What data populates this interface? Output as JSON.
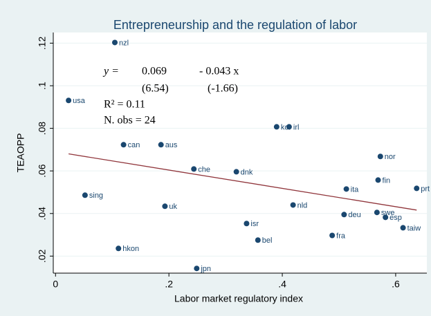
{
  "chart_data": {
    "type": "scatter",
    "title": "Entrepreneurship and the regulation of labor",
    "x_label": "Labor market regulatory index",
    "y_label": "TEAOPP",
    "color": "#1a476f",
    "fit_color": "#90353b",
    "grid": true,
    "xlim": [
      -0.004,
      0.655
    ],
    "ylim": [
      0.012,
      0.125
    ],
    "xticks": [
      0,
      {
        "value": 0.2,
        "label": ".2"
      },
      {
        "value": 0.4,
        "label": ".4"
      },
      {
        "value": 0.6,
        "label": ".6"
      }
    ],
    "yticks": [
      {
        "value": 0.02,
        "label": ".02"
      },
      {
        "value": 0.04,
        "label": ".04"
      },
      {
        "value": 0.06,
        "label": ".06"
      },
      {
        "value": 0.08,
        "label": ".08"
      },
      {
        "value": 0.1,
        "label": ".1"
      },
      {
        "value": 0.12,
        "label": ".12"
      }
    ],
    "point_labels": [
      "nzl",
      "usa",
      "can",
      "aus",
      "che",
      "dnk",
      "kor",
      "irl",
      "nor",
      "fin",
      "prt",
      "ita",
      "sing",
      "uk",
      "nld",
      "swe",
      "deu",
      "esp",
      "isr",
      "taiw",
      "bel",
      "fra",
      "hkon",
      "jpn"
    ],
    "x": [
      0.1046,
      0.023,
      0.12,
      0.186,
      0.244,
      0.319,
      0.39,
      0.412,
      0.573,
      0.569,
      0.637,
      0.513,
      0.052,
      0.193,
      0.419,
      0.567,
      0.509,
      0.582,
      0.337,
      0.613,
      0.357,
      0.488,
      0.111,
      0.249
    ],
    "values": [
      0.1203,
      0.0931,
      0.0723,
      0.0723,
      0.0609,
      0.0596,
      0.0807,
      0.0807,
      0.0668,
      0.0557,
      0.0518,
      0.0515,
      0.0486,
      0.0434,
      0.044,
      0.0405,
      0.0395,
      0.0382,
      0.0353,
      0.0333,
      0.0275,
      0.0297,
      0.0236,
      0.0142
    ],
    "fit": {
      "y_label": "y =",
      "intercept": 0.069,
      "slope": {
        "value": -0.043,
        "label": "- 0.043 x"
      },
      "t_intercept": {
        "value": 6.54,
        "label": "(6.54)"
      },
      "t_slope": {
        "value": -1.66,
        "label": "(-1.66)"
      },
      "r2": {
        "value": 0.11,
        "label": "R² = 0.11"
      },
      "n_obs": {
        "value": 24,
        "label": "N. obs = 24"
      }
    }
  }
}
